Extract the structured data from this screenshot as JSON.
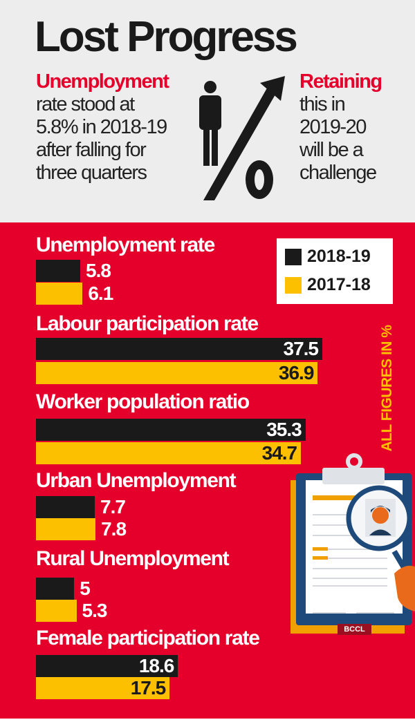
{
  "header": {
    "title": "Lost Progress",
    "left_highlight": "Unemployment",
    "left_lines": [
      "rate stood at",
      "5.8% in 2018-19",
      "after falling for",
      "three quarters"
    ],
    "right_highlight": "Retaining",
    "right_lines": [
      "this in",
      "2019-20",
      "will be a",
      "challenge"
    ]
  },
  "note": "ALL FIGURES IN %",
  "credit": "BCCL",
  "colors": {
    "header_bg": "#ededed",
    "panel_bg": "#e4002b",
    "series_2018_19": "#1a1a1a",
    "series_2017_18": "#fcc000"
  },
  "chart_data": {
    "type": "bar",
    "orientation": "horizontal",
    "unit": "%",
    "legend": "top-right",
    "categories": [
      "Unemployment rate",
      "Labour participation rate",
      "Worker population ratio",
      "Urban Unemployment",
      "Rural Unemployment",
      "Female participation rate"
    ],
    "series": [
      {
        "name": "2018-19",
        "values": [
          5.8,
          37.5,
          35.3,
          7.7,
          5,
          18.6
        ],
        "labels": [
          "5.8",
          "37.5",
          "35.3",
          "7.7",
          "5",
          "18.6"
        ]
      },
      {
        "name": "2017-18",
        "values": [
          6.1,
          36.9,
          34.7,
          7.8,
          5.3,
          17.5
        ],
        "labels": [
          "6.1",
          "36.9",
          "34.7",
          "7.8",
          "5.3",
          "17.5"
        ]
      }
    ]
  }
}
